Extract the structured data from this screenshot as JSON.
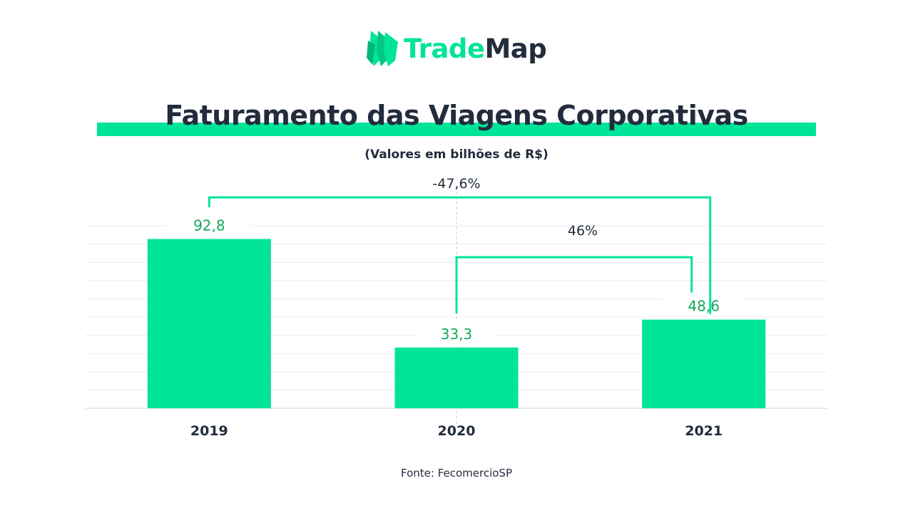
{
  "brand": {
    "name_part1": "Trade",
    "name_part2": "Map"
  },
  "chart_data": {
    "type": "bar",
    "title": "Faturamento das Viagens Corporativas",
    "subtitle": "(Valores em bilhões de R$)",
    "categories": [
      "2019",
      "2020",
      "2021"
    ],
    "values": [
      92.8,
      33.3,
      48.6
    ],
    "value_labels": [
      "92,8",
      "33,3",
      "48,6"
    ],
    "ylim": [
      0,
      100
    ],
    "grid": true,
    "annotations": [
      {
        "text": "-47,6%",
        "from": "2019",
        "to": "2021"
      },
      {
        "text": "46%",
        "from": "2020",
        "to": "2021"
      }
    ],
    "colors": {
      "bar": "#00e49a",
      "label": "#12a85a",
      "bracket": "#00e49a",
      "text": "#232c3d"
    }
  },
  "source": "Fonte: FecomercioSP"
}
